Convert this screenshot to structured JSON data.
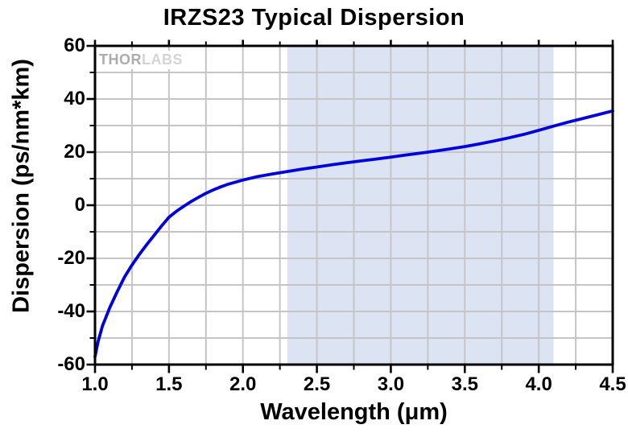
{
  "chart_data": {
    "type": "line",
    "title": "IRZS23 Typical Dispersion",
    "xlabel": "Wavelength (μm)",
    "ylabel": "Dispersion (ps/nm*km)",
    "xlim": [
      1.0,
      4.5
    ],
    "ylim": [
      -60,
      60
    ],
    "x_ticks": [
      1.0,
      1.5,
      2.0,
      2.5,
      3.0,
      3.5,
      4.0,
      4.5
    ],
    "x_tick_labels": [
      "1.0",
      "1.5",
      "2.0",
      "2.5",
      "3.0",
      "3.5",
      "4.0",
      "4.5"
    ],
    "x_minor_step": 0.25,
    "y_ticks": [
      60,
      40,
      20,
      0,
      -20,
      -40,
      -60
    ],
    "y_tick_labels": [
      "60",
      "40",
      "20",
      "0",
      "-20",
      "-40",
      "-60"
    ],
    "y_minor_step": 10,
    "grid": true,
    "grid_color": "#c5c5c5",
    "axis_color": "#000000",
    "legend": "none",
    "shaded_band": {
      "x_start": 2.3,
      "x_end": 4.1,
      "color": "#dce4f4"
    },
    "series": [
      {
        "name": "Typical Dispersion",
        "color": "#0000dd",
        "points": [
          [
            1.0,
            -57.0
          ],
          [
            1.02,
            -51.5
          ],
          [
            1.05,
            -45.5
          ],
          [
            1.1,
            -38.5
          ],
          [
            1.15,
            -32.5
          ],
          [
            1.2,
            -27.0
          ],
          [
            1.25,
            -22.5
          ],
          [
            1.3,
            -18.5
          ],
          [
            1.35,
            -14.8
          ],
          [
            1.4,
            -11.3
          ],
          [
            1.45,
            -7.8
          ],
          [
            1.5,
            -4.5
          ],
          [
            1.55,
            -2.3
          ],
          [
            1.6,
            -0.4
          ],
          [
            1.65,
            1.4
          ],
          [
            1.7,
            3.0
          ],
          [
            1.75,
            4.5
          ],
          [
            1.8,
            5.8
          ],
          [
            1.85,
            6.9
          ],
          [
            1.9,
            7.9
          ],
          [
            1.95,
            8.7
          ],
          [
            2.0,
            9.5
          ],
          [
            2.1,
            10.8
          ],
          [
            2.2,
            11.8
          ],
          [
            2.3,
            12.7
          ],
          [
            2.4,
            13.6
          ],
          [
            2.5,
            14.4
          ],
          [
            2.6,
            15.2
          ],
          [
            2.7,
            16.0
          ],
          [
            2.8,
            16.7
          ],
          [
            2.9,
            17.4
          ],
          [
            3.0,
            18.1
          ],
          [
            3.1,
            18.9
          ],
          [
            3.2,
            19.6
          ],
          [
            3.3,
            20.4
          ],
          [
            3.4,
            21.2
          ],
          [
            3.5,
            22.1
          ],
          [
            3.6,
            23.1
          ],
          [
            3.7,
            24.2
          ],
          [
            3.8,
            25.4
          ],
          [
            3.9,
            26.7
          ],
          [
            4.0,
            28.2
          ],
          [
            4.1,
            29.8
          ],
          [
            4.2,
            31.3
          ],
          [
            4.3,
            32.7
          ],
          [
            4.4,
            34.1
          ],
          [
            4.5,
            35.5
          ]
        ]
      }
    ]
  },
  "watermark": {
    "part1": "THOR",
    "part2": "LABS"
  }
}
